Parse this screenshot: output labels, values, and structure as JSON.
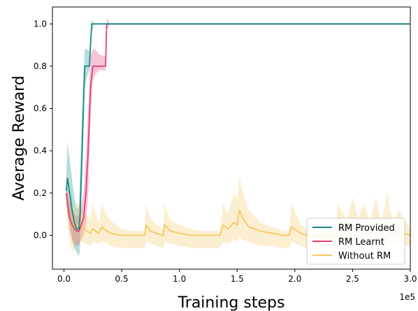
{
  "chart_data": {
    "type": "line",
    "xlabel": "Training steps",
    "ylabel": "Average Reward",
    "x_offset_label": "1e5",
    "xlim": [
      -0.1,
      3.0
    ],
    "ylim": [
      -0.16,
      1.08
    ],
    "xticks": [
      0.0,
      0.5,
      1.0,
      1.5,
      2.0,
      2.5,
      3.0
    ],
    "xtick_labels": [
      "0.0",
      "0.5",
      "1.0",
      "1.5",
      "2.0",
      "2.5",
      "3.0"
    ],
    "yticks": [
      0.0,
      0.2,
      0.4,
      0.6,
      0.8,
      1.0
    ],
    "ytick_labels": [
      "0.0",
      "0.2",
      "0.4",
      "0.6",
      "0.8",
      "1.0"
    ],
    "grid": false,
    "legend": "bottom-right",
    "series": [
      {
        "name": "RM Provided",
        "color": "#178a8a",
        "x": [
          0.02,
          0.03,
          0.05,
          0.07,
          0.09,
          0.11,
          0.13,
          0.14,
          0.16,
          0.18,
          0.2,
          0.22,
          0.24,
          0.26,
          0.3,
          0.4,
          3.0
        ],
        "y": [
          0.21,
          0.27,
          0.2,
          0.12,
          0.06,
          0.03,
          0.03,
          0.1,
          0.45,
          0.8,
          0.8,
          0.8,
          1.0,
          1.0,
          1.0,
          1.0,
          1.0
        ],
        "lower": [
          0.15,
          0.1,
          0.05,
          -0.02,
          -0.06,
          -0.08,
          -0.1,
          -0.05,
          0.3,
          0.7,
          0.75,
          0.78,
          0.96,
          1.0,
          1.0,
          1.0,
          1.0
        ],
        "upper": [
          0.28,
          0.44,
          0.36,
          0.26,
          0.18,
          0.12,
          0.14,
          0.3,
          0.65,
          0.88,
          0.88,
          0.87,
          1.02,
          1.0,
          1.0,
          1.0,
          1.0
        ]
      },
      {
        "name": "RM Learnt",
        "color": "#e0407a",
        "x": [
          0.02,
          0.03,
          0.05,
          0.07,
          0.09,
          0.11,
          0.13,
          0.15,
          0.17,
          0.19,
          0.21,
          0.23,
          0.25,
          0.27,
          0.3,
          0.33,
          0.36,
          0.37,
          0.4,
          3.0
        ],
        "y": [
          0.2,
          0.15,
          0.08,
          0.05,
          0.03,
          0.02,
          0.02,
          0.05,
          0.08,
          0.2,
          0.4,
          0.7,
          0.8,
          0.8,
          0.8,
          0.8,
          0.8,
          1.0,
          1.0,
          1.0
        ],
        "lower": [
          0.18,
          0.1,
          0.02,
          -0.02,
          -0.04,
          -0.05,
          -0.04,
          -0.02,
          0.0,
          0.05,
          0.2,
          0.55,
          0.73,
          0.76,
          0.78,
          0.78,
          0.78,
          0.97,
          1.0,
          1.0
        ],
        "upper": [
          0.22,
          0.22,
          0.16,
          0.13,
          0.1,
          0.09,
          0.1,
          0.14,
          0.2,
          0.38,
          0.6,
          0.85,
          0.88,
          0.88,
          0.86,
          0.85,
          0.85,
          1.03,
          1.0,
          1.0
        ]
      },
      {
        "name": "Without RM",
        "color": "#f6c863",
        "x": [
          0.02,
          0.04,
          0.06,
          0.08,
          0.1,
          0.12,
          0.15,
          0.2,
          0.23,
          0.25,
          0.3,
          0.33,
          0.35,
          0.4,
          0.5,
          0.6,
          0.7,
          0.71,
          0.75,
          0.8,
          0.86,
          0.87,
          0.92,
          1.0,
          1.1,
          1.2,
          1.35,
          1.38,
          1.42,
          1.47,
          1.5,
          1.52,
          1.55,
          1.6,
          1.7,
          1.8,
          1.9,
          1.95,
          1.97,
          2.05,
          2.1,
          2.2,
          2.3,
          2.35,
          2.37,
          2.45,
          2.5,
          2.55,
          2.6,
          2.65,
          2.7,
          2.75,
          2.8,
          2.85,
          2.9,
          3.0
        ],
        "y": [
          0.2,
          0.1,
          0.05,
          0.03,
          0.04,
          0.05,
          0.04,
          0.02,
          0.01,
          0.03,
          0.01,
          0.04,
          0.03,
          0.01,
          0.0,
          0.0,
          0.0,
          0.05,
          0.02,
          0.01,
          0.0,
          0.05,
          0.02,
          0.01,
          0.0,
          0.0,
          0.0,
          0.05,
          0.03,
          0.06,
          0.05,
          0.12,
          0.08,
          0.04,
          0.02,
          0.01,
          0.0,
          0.0,
          0.04,
          0.01,
          0.0,
          0.0,
          0.0,
          0.0,
          0.04,
          0.02,
          0.04,
          0.02,
          0.03,
          0.01,
          0.03,
          0.01,
          0.03,
          0.01,
          0.02,
          0.0
        ],
        "lower": [
          0.15,
          0.0,
          -0.05,
          -0.08,
          -0.05,
          -0.03,
          -0.03,
          -0.04,
          -0.05,
          -0.03,
          -0.04,
          -0.03,
          -0.03,
          -0.05,
          -0.06,
          -0.06,
          -0.06,
          -0.03,
          -0.04,
          -0.05,
          -0.06,
          -0.03,
          -0.04,
          -0.05,
          -0.06,
          -0.06,
          -0.06,
          -0.03,
          -0.04,
          -0.02,
          -0.03,
          0.0,
          -0.02,
          -0.03,
          -0.05,
          -0.05,
          -0.06,
          -0.06,
          -0.03,
          -0.05,
          -0.06,
          -0.06,
          -0.06,
          -0.06,
          -0.03,
          -0.04,
          -0.03,
          -0.04,
          -0.03,
          -0.05,
          -0.03,
          -0.05,
          -0.03,
          -0.05,
          -0.04,
          -0.05
        ],
        "upper": [
          0.22,
          0.2,
          0.15,
          0.12,
          0.14,
          0.16,
          0.12,
          0.1,
          0.07,
          0.15,
          0.06,
          0.15,
          0.12,
          0.07,
          0.03,
          0.02,
          0.02,
          0.15,
          0.08,
          0.05,
          0.03,
          0.15,
          0.07,
          0.05,
          0.03,
          0.02,
          0.02,
          0.15,
          0.1,
          0.2,
          0.18,
          0.28,
          0.2,
          0.12,
          0.06,
          0.04,
          0.02,
          0.02,
          0.15,
          0.05,
          0.03,
          0.02,
          0.02,
          0.02,
          0.15,
          0.07,
          0.18,
          0.08,
          0.15,
          0.06,
          0.18,
          0.06,
          0.2,
          0.05,
          0.12,
          0.03
        ]
      }
    ]
  }
}
